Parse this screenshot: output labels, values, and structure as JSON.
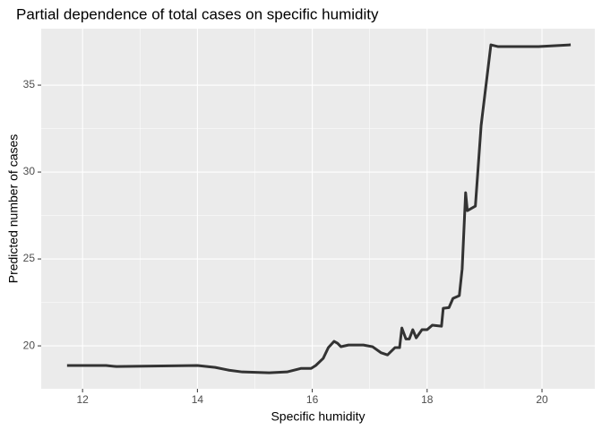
{
  "chart_data": {
    "type": "line",
    "title": "Partial dependence of total cases on specific humidity",
    "x_label": "Specific humidity",
    "y_label": "Predicted number of cases",
    "xlim": [
      11.28,
      20.92
    ],
    "ylim": [
      17.53,
      38.25
    ],
    "xticks": [
      12,
      14,
      16,
      18,
      20
    ],
    "yticks": [
      20,
      25,
      30,
      35
    ],
    "grid": true,
    "panel_color": "#ebebeb",
    "series": [
      {
        "color": "#333333",
        "x": [
          11.73,
          12.41,
          12.59,
          14.0,
          14.31,
          14.55,
          14.78,
          15.25,
          15.56,
          15.8,
          15.98,
          16.06,
          16.19,
          16.28,
          16.38,
          16.44,
          16.5,
          16.63,
          16.89,
          17.05,
          17.2,
          17.31,
          17.44,
          17.52,
          17.56,
          17.63,
          17.69,
          17.75,
          17.81,
          17.91,
          18.0,
          18.09,
          18.25,
          18.28,
          18.38,
          18.45,
          18.56,
          18.61,
          18.67,
          18.7,
          18.84,
          18.94,
          19.11,
          19.23,
          19.94,
          20.5
        ],
        "values": [
          18.87,
          18.87,
          18.81,
          18.87,
          18.76,
          18.6,
          18.5,
          18.45,
          18.5,
          18.7,
          18.7,
          18.87,
          19.28,
          19.9,
          20.26,
          20.15,
          19.95,
          20.05,
          20.05,
          19.95,
          19.6,
          19.48,
          19.9,
          19.9,
          21.03,
          20.4,
          20.4,
          20.93,
          20.46,
          20.93,
          20.93,
          21.19,
          21.13,
          22.16,
          22.2,
          22.73,
          22.89,
          24.43,
          28.81,
          27.78,
          28.04,
          32.68,
          37.32,
          37.22,
          37.22,
          37.32
        ]
      }
    ]
  }
}
